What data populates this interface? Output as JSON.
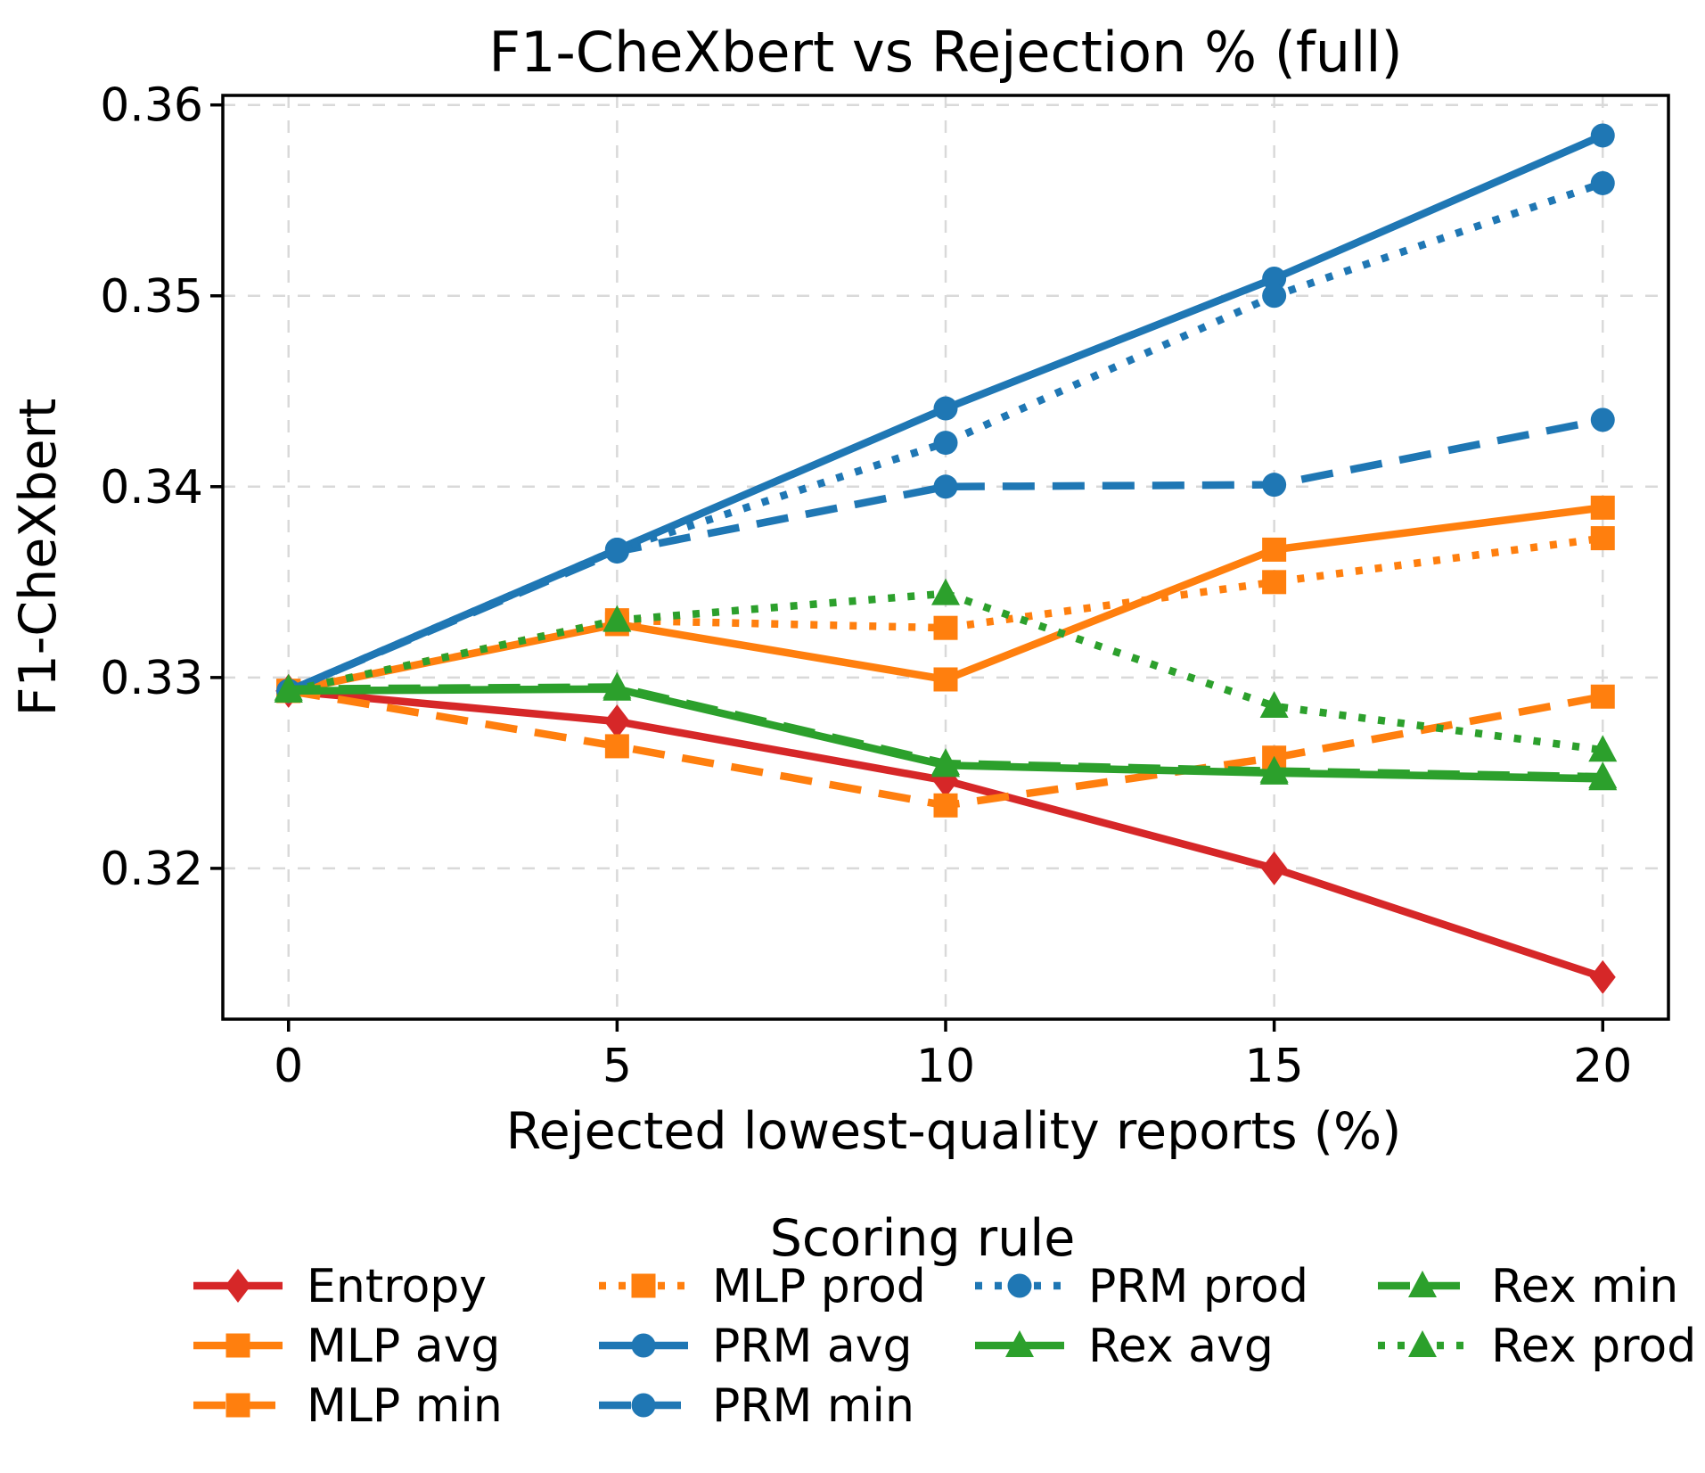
{
  "chart_data": {
    "type": "line",
    "title": "F1-CheXbert vs Rejection % (full)",
    "xlabel": "Rejected lowest-quality reports (%)",
    "ylabel": "F1-CheXbert",
    "grid": true,
    "x": [
      0,
      5,
      10,
      15,
      20
    ],
    "xticks": [
      "0",
      "5",
      "10",
      "15",
      "20"
    ],
    "yticks": [
      "0.32",
      "0.33",
      "0.34",
      "0.35",
      "0.36"
    ],
    "ytick_values": [
      0.32,
      0.33,
      0.34,
      0.35,
      0.36
    ],
    "xlim": [
      -1,
      21
    ],
    "ylim": [
      0.3121,
      0.3605
    ],
    "legend_title": "Scoring rule",
    "legend_position": "bottom",
    "series": [
      {
        "name": "Entropy",
        "color": "#d62728",
        "line": "solid",
        "marker": "diamond",
        "values": [
          0.3293,
          0.3277,
          0.3246,
          0.32,
          0.3143
        ]
      },
      {
        "name": "MLP avg",
        "color": "#ff7f0e",
        "line": "solid",
        "marker": "square",
        "values": [
          0.3293,
          0.3328,
          0.3299,
          0.3367,
          0.3389
        ]
      },
      {
        "name": "MLP min",
        "color": "#ff7f0e",
        "line": "dashed",
        "marker": "square",
        "values": [
          0.3293,
          0.3264,
          0.3233,
          0.3258,
          0.329
        ]
      },
      {
        "name": "MLP prod",
        "color": "#ff7f0e",
        "line": "dotted",
        "marker": "square",
        "values": [
          0.3293,
          0.333,
          0.3326,
          0.335,
          0.3373
        ]
      },
      {
        "name": "PRM avg",
        "color": "#1f77b4",
        "line": "solid",
        "marker": "circle",
        "values": [
          0.3293,
          0.3367,
          0.3441,
          0.3509,
          0.3584
        ]
      },
      {
        "name": "PRM min",
        "color": "#1f77b4",
        "line": "dashed",
        "marker": "circle",
        "values": [
          0.3293,
          0.3366,
          0.34,
          0.3401,
          0.3435
        ]
      },
      {
        "name": "PRM prod",
        "color": "#1f77b4",
        "line": "dotted",
        "marker": "circle",
        "values": [
          0.3293,
          0.3367,
          0.3423,
          0.35,
          0.3559
        ]
      },
      {
        "name": "Rex avg",
        "color": "#2ca02c",
        "line": "solid",
        "marker": "triangle",
        "values": [
          0.3293,
          0.3294,
          0.3254,
          0.325,
          0.3247
        ]
      },
      {
        "name": "Rex min",
        "color": "#2ca02c",
        "line": "dashed",
        "marker": "triangle",
        "values": [
          0.3294,
          0.3295,
          0.3255,
          0.3251,
          0.3248
        ]
      },
      {
        "name": "Rex prod",
        "color": "#2ca02c",
        "line": "dotted",
        "marker": "triangle",
        "values": [
          0.3293,
          0.333,
          0.3344,
          0.3285,
          0.3262
        ]
      }
    ],
    "legend_columns": [
      [
        "Entropy",
        "MLP avg",
        "MLP min"
      ],
      [
        "MLP prod",
        "PRM avg",
        "PRM min"
      ],
      [
        "PRM prod",
        "Rex avg"
      ],
      [
        "Rex min",
        "Rex prod"
      ]
    ]
  }
}
